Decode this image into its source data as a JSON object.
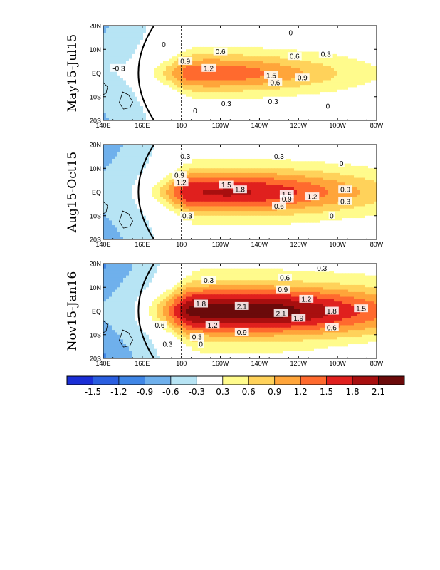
{
  "chart_data": {
    "type": "heatmap",
    "variable_units": "",
    "x_ticks": [
      "140E",
      "160E",
      "180",
      "160W",
      "140W",
      "120W",
      "100W",
      "80W"
    ],
    "y_ticks": [
      "20N",
      "10N",
      "EQ",
      "10S",
      "20S"
    ],
    "xlim_deg_east": [
      140,
      280
    ],
    "ylim_deg_north": [
      -20,
      20
    ],
    "reference_lines": {
      "equator": true,
      "dateline": true
    },
    "colorbar": {
      "levels": [
        "-1.5",
        "-1.2",
        "-0.9",
        "-0.6",
        "-0.3",
        "0.3",
        "0.6",
        "0.9",
        "1.2",
        "1.5",
        "1.8",
        "2.1"
      ],
      "colors": [
        "#1a2ed6",
        "#2a5ee0",
        "#3f86e6",
        "#6fb0ec",
        "#b7e4f4",
        "#ffffff",
        "#fffb8c",
        "#ffd25a",
        "#ffa53a",
        "#ff6a2e",
        "#e0201e",
        "#a80f0f",
        "#6b0a0a"
      ]
    },
    "panels": [
      {
        "title": "May15-Jul15",
        "contour_labels": [
          {
            "text": "0",
            "lon": 236,
            "lat": 17
          },
          {
            "text": "-0.3",
            "lon": 148,
            "lat": 2
          },
          {
            "text": "0",
            "lon": 171,
            "lat": 12
          },
          {
            "text": "0.6",
            "lon": 200,
            "lat": 9
          },
          {
            "text": "0.9",
            "lon": 182,
            "lat": 5
          },
          {
            "text": "0.6",
            "lon": 238,
            "lat": 7
          },
          {
            "text": "0.3",
            "lon": 254,
            "lat": 8
          },
          {
            "text": "1.2",
            "lon": 194,
            "lat": 2
          },
          {
            "text": "1.5",
            "lon": 226,
            "lat": -1
          },
          {
            "text": "0.6",
            "lon": 228,
            "lat": -4
          },
          {
            "text": "0.9",
            "lon": 242,
            "lat": -2
          },
          {
            "text": "0.3",
            "lon": 203,
            "lat": -13
          },
          {
            "text": "0.3",
            "lon": 227,
            "lat": -12
          },
          {
            "text": "0",
            "lon": 255,
            "lat": -14
          },
          {
            "text": "0",
            "lon": 187,
            "lat": -16
          }
        ]
      },
      {
        "title": "Aug15-Oct15",
        "contour_labels": [
          {
            "text": "0.3",
            "lon": 182,
            "lat": 15
          },
          {
            "text": "0.3",
            "lon": 230,
            "lat": 15
          },
          {
            "text": "0",
            "lon": 262,
            "lat": 12
          },
          {
            "text": "0.9",
            "lon": 179,
            "lat": 7
          },
          {
            "text": "1.2",
            "lon": 180,
            "lat": 4
          },
          {
            "text": "1.5",
            "lon": 203,
            "lat": 3
          },
          {
            "text": "1.8",
            "lon": 210,
            "lat": 1
          },
          {
            "text": "1.5",
            "lon": 234,
            "lat": -1
          },
          {
            "text": "0.9",
            "lon": 234,
            "lat": -3
          },
          {
            "text": "0.6",
            "lon": 230,
            "lat": -6
          },
          {
            "text": "1.2",
            "lon": 247,
            "lat": -2
          },
          {
            "text": "0.9",
            "lon": 264,
            "lat": 1
          },
          {
            "text": "0.3",
            "lon": 264,
            "lat": -4
          },
          {
            "text": "0",
            "lon": 257,
            "lat": -10
          },
          {
            "text": "0.3",
            "lon": 183,
            "lat": -10
          }
        ]
      },
      {
        "title": "Nov15-Jan16",
        "contour_labels": [
          {
            "text": "0.3",
            "lon": 194,
            "lat": 13
          },
          {
            "text": "0.6",
            "lon": 233,
            "lat": 14
          },
          {
            "text": "0.3",
            "lon": 252,
            "lat": 18
          },
          {
            "text": "0.9",
            "lon": 232,
            "lat": 9
          },
          {
            "text": "1.2",
            "lon": 244,
            "lat": 5
          },
          {
            "text": "1.8",
            "lon": 190,
            "lat": 3
          },
          {
            "text": "2.1",
            "lon": 211,
            "lat": 2
          },
          {
            "text": "2.1",
            "lon": 231,
            "lat": -1
          },
          {
            "text": "1.9",
            "lon": 240,
            "lat": -3
          },
          {
            "text": "1.8",
            "lon": 257,
            "lat": 0
          },
          {
            "text": "1.5",
            "lon": 272,
            "lat": 1
          },
          {
            "text": "1.2",
            "lon": 196,
            "lat": -6
          },
          {
            "text": "0.9",
            "lon": 211,
            "lat": -9
          },
          {
            "text": "0.6",
            "lon": 169,
            "lat": -6
          },
          {
            "text": "0.6",
            "lon": 257,
            "lat": -7
          },
          {
            "text": "0.3",
            "lon": 188,
            "lat": -11
          },
          {
            "text": "0",
            "lon": 190,
            "lat": -14
          },
          {
            "text": "0.3",
            "lon": 173,
            "lat": -14
          }
        ]
      }
    ]
  }
}
